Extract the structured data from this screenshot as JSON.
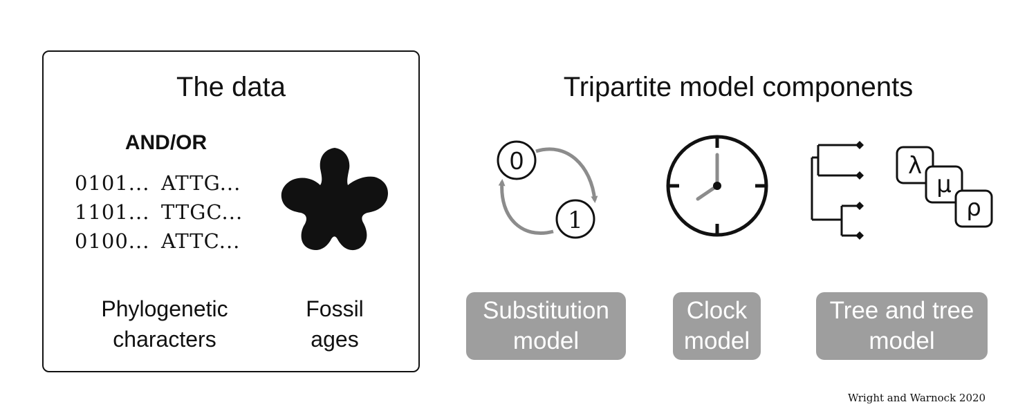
{
  "data_panel": {
    "title": "The data",
    "and_or": "AND/OR",
    "sequences": [
      {
        "binary": "0101...",
        "dna": "ATTG..."
      },
      {
        "binary": "1101...",
        "dna": "TTGC..."
      },
      {
        "binary": "0100...",
        "dna": "ATTC..."
      }
    ],
    "caption_characters": [
      "Phylogenetic",
      "characters"
    ],
    "caption_fossil": [
      "Fossil",
      "ages"
    ]
  },
  "model_panel": {
    "title": "Tripartite model components",
    "substitution_states": [
      "0",
      "1"
    ],
    "tree_params": [
      "λ",
      "μ",
      "ρ"
    ],
    "components": [
      {
        "lines": [
          "Substitution",
          "model"
        ]
      },
      {
        "lines": [
          "Clock",
          "model"
        ]
      },
      {
        "lines": [
          "Tree and tree",
          "model"
        ]
      }
    ]
  },
  "credit": "Wright and Warnock 2020",
  "colors": {
    "ink": "#111111",
    "arrow_gray": "#8c8c8c",
    "pill_gray": "#9e9e9e",
    "pill_text": "#ffffff"
  },
  "icons": [
    "substitution-cycle-icon",
    "clock-icon",
    "tree-icon",
    "parameter-boxes-icon",
    "fossil-silhouette-icon"
  ]
}
